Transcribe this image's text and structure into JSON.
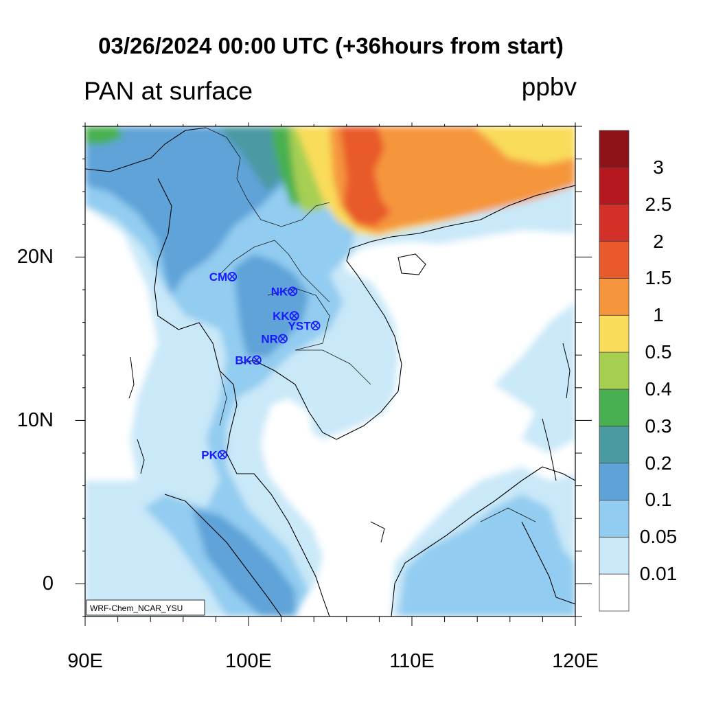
{
  "title": "03/26/2024 00:00 UTC (+36hours from start)",
  "left_title": "PAN at surface",
  "right_title": "ppbv",
  "credit": "WRF-Chem_NCAR_YSU",
  "axes": {
    "lon_range": [
      90,
      120
    ],
    "lat_range": [
      -2,
      28
    ],
    "lat_ticks": [
      {
        "value": 20,
        "label": "20N"
      },
      {
        "value": 10,
        "label": "10N"
      },
      {
        "value": 0,
        "label": "0"
      }
    ],
    "lon_ticks": [
      {
        "value": 90,
        "label": "90E"
      },
      {
        "value": 100,
        "label": "100E"
      },
      {
        "value": 110,
        "label": "110E"
      },
      {
        "value": 120,
        "label": "120E"
      }
    ]
  },
  "colorbar": {
    "levels": [
      "0.01",
      "0.05",
      "0.1",
      "0.2",
      "0.3",
      "0.4",
      "0.5",
      "1",
      "1.5",
      "2",
      "2.5",
      "3"
    ],
    "colors": [
      "#ffffff",
      "#c9e8f8",
      "#92ccf0",
      "#5ea3d8",
      "#4a9aa2",
      "#48b050",
      "#a6cf52",
      "#f9dc5a",
      "#f5963e",
      "#e85a2b",
      "#d4302a",
      "#b5191e",
      "#8c1317"
    ]
  },
  "stations": [
    {
      "code": "CM",
      "lon": 99.0,
      "lat": 18.8
    },
    {
      "code": "NK",
      "lon": 102.7,
      "lat": 17.9
    },
    {
      "code": "KK",
      "lon": 102.8,
      "lat": 16.4
    },
    {
      "code": "YST",
      "lon": 104.1,
      "lat": 15.8
    },
    {
      "code": "NR",
      "lon": 102.1,
      "lat": 15.0
    },
    {
      "code": "BK",
      "lon": 100.5,
      "lat": 13.7
    },
    {
      "code": "PK",
      "lon": 98.4,
      "lat": 7.9
    }
  ]
}
